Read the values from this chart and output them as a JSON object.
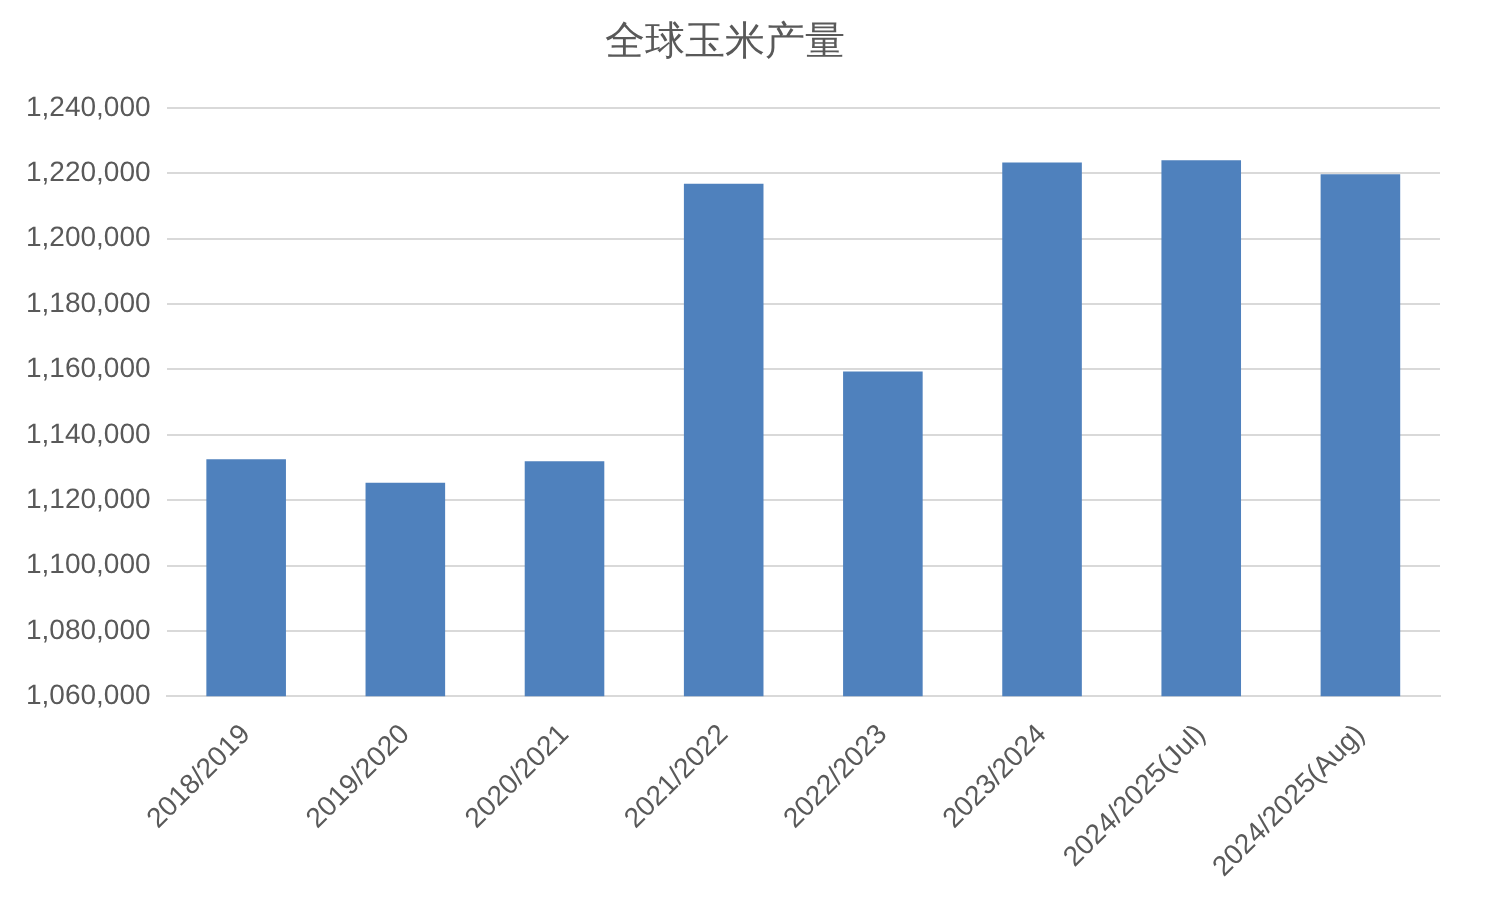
{
  "chart_data": {
    "type": "bar",
    "title": "全球玉米产量",
    "categories": [
      "2018/2019",
      "2019/2020",
      "2020/2021",
      "2021/2022",
      "2022/2023",
      "2023/2024",
      "2024/2025(Jul)",
      "2024/2025(Aug)"
    ],
    "values": [
      1132500,
      1125300,
      1131900,
      1216800,
      1159400,
      1223300,
      1224000,
      1219700
    ],
    "color": "#4f81bd",
    "ylim": [
      1060000,
      1240000
    ],
    "yticks": [
      {
        "value": 1060000,
        "label": "1,060,000"
      },
      {
        "value": 1080000,
        "label": "1,080,000"
      },
      {
        "value": 1100000,
        "label": "1,100,000"
      },
      {
        "value": 1120000,
        "label": "1,120,000"
      },
      {
        "value": 1140000,
        "label": "1,140,000"
      },
      {
        "value": 1160000,
        "label": "1,160,000"
      },
      {
        "value": 1180000,
        "label": "1,180,000"
      },
      {
        "value": 1200000,
        "label": "1,200,000"
      },
      {
        "value": 1220000,
        "label": "1,220,000"
      },
      {
        "value": 1240000,
        "label": "1,240,000"
      }
    ],
    "grid": "y"
  }
}
